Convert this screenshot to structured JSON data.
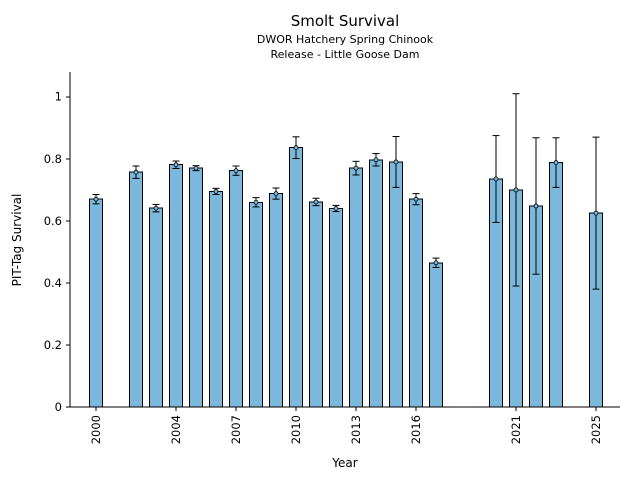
{
  "chart_data": {
    "type": "bar",
    "title": "Smolt Survival",
    "subtitle_line1": "DWOR Hatchery Spring Chinook",
    "subtitle_line2": "Release - Little Goose Dam",
    "xlabel": "Year",
    "ylabel": "PIT-Tag Survival",
    "xlim": [
      1998.7,
      2026.2
    ],
    "ylim": [
      0,
      1.08
    ],
    "xticks": [
      2000,
      2004,
      2007,
      2010,
      2013,
      2016,
      2021,
      2025
    ],
    "yticks": [
      0,
      0.2,
      0.4,
      0.6,
      0.8,
      1
    ],
    "grid": false,
    "legend": "none",
    "bar_color": "#7cb8dc",
    "bar_edge_color": "#000000",
    "error_color": "#000000",
    "bars": [
      {
        "year": 2000,
        "value": 0.67,
        "err": 0.015
      },
      {
        "year": 2002,
        "value": 0.757,
        "err": 0.02
      },
      {
        "year": 2003,
        "value": 0.641,
        "err": 0.012
      },
      {
        "year": 2004,
        "value": 0.781,
        "err": 0.012
      },
      {
        "year": 2005,
        "value": 0.77,
        "err": 0.008
      },
      {
        "year": 2006,
        "value": 0.695,
        "err": 0.01
      },
      {
        "year": 2007,
        "value": 0.762,
        "err": 0.015
      },
      {
        "year": 2008,
        "value": 0.66,
        "err": 0.015
      },
      {
        "year": 2009,
        "value": 0.688,
        "err": 0.018
      },
      {
        "year": 2010,
        "value": 0.836,
        "err": 0.035
      },
      {
        "year": 2011,
        "value": 0.661,
        "err": 0.012
      },
      {
        "year": 2012,
        "value": 0.64,
        "err": 0.01
      },
      {
        "year": 2013,
        "value": 0.77,
        "err": 0.022
      },
      {
        "year": 2014,
        "value": 0.797,
        "err": 0.02
      },
      {
        "year": 2015,
        "value": 0.79,
        "err": 0.082
      },
      {
        "year": 2016,
        "value": 0.67,
        "err": 0.018
      },
      {
        "year": 2017,
        "value": 0.465,
        "err": 0.015
      },
      {
        "year": 2020,
        "value": 0.735,
        "err": 0.14
      },
      {
        "year": 2021,
        "value": 0.7,
        "err": 0.31
      },
      {
        "year": 2022,
        "value": 0.648,
        "err": 0.22
      },
      {
        "year": 2023,
        "value": 0.788,
        "err": 0.08
      },
      {
        "year": 2025,
        "value": 0.625,
        "err": 0.245
      }
    ]
  }
}
